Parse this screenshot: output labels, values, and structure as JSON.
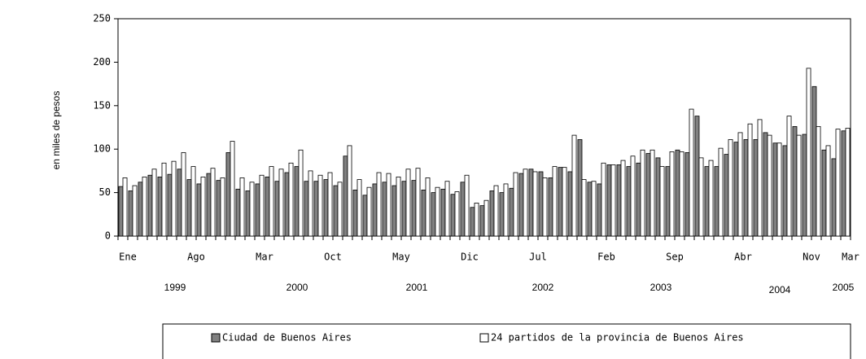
{
  "chart_data": {
    "type": "bar",
    "y_label": "en miles de pesos",
    "categories": [
      "Ene",
      null,
      null,
      null,
      null,
      null,
      null,
      "Ago",
      null,
      null,
      null,
      null,
      null,
      null,
      "Mar",
      null,
      null,
      null,
      null,
      null,
      null,
      "Oct",
      null,
      null,
      null,
      null,
      null,
      null,
      "May",
      null,
      null,
      null,
      null,
      null,
      null,
      "Dic",
      null,
      null,
      null,
      null,
      null,
      null,
      "Jul",
      null,
      null,
      null,
      null,
      null,
      null,
      "Feb",
      null,
      null,
      null,
      null,
      null,
      null,
      "Sep",
      null,
      null,
      null,
      null,
      null,
      null,
      "Abr",
      null,
      null,
      null,
      null,
      null,
      null,
      "Nov",
      null,
      null,
      null,
      "Mar"
    ],
    "years": [
      "1999",
      "2000",
      "2001",
      "2002",
      "2003",
      "2004",
      "2005"
    ],
    "series": [
      {
        "name": "Ciudad de Buenos Aires",
        "color": "#808080",
        "values": [
          57,
          52,
          62,
          70,
          68,
          71,
          77,
          65,
          60,
          72,
          64,
          96,
          54,
          52,
          60,
          68,
          63,
          73,
          80,
          63,
          63,
          65,
          58,
          92,
          53,
          47,
          60,
          62,
          58,
          63,
          64,
          53,
          50,
          54,
          48,
          62,
          33,
          35,
          52,
          50,
          55,
          72,
          77,
          74,
          67,
          79,
          74,
          111,
          62,
          60,
          82,
          82,
          80,
          84,
          95,
          90,
          80,
          99,
          96,
          138,
          80,
          80,
          94,
          108,
          111,
          111,
          119,
          107,
          104,
          126,
          117,
          172,
          99,
          89,
          121
        ]
      },
      {
        "name": "24 partidos de la provincia de Buenos Aires",
        "color": "#ffffff",
        "values": [
          67,
          58,
          68,
          77,
          84,
          86,
          96,
          80,
          68,
          78,
          67,
          109,
          67,
          62,
          70,
          80,
          77,
          84,
          99,
          75,
          70,
          73,
          62,
          104,
          65,
          56,
          73,
          72,
          68,
          77,
          78,
          67,
          56,
          63,
          51,
          70,
          38,
          41,
          58,
          60,
          73,
          77,
          74,
          67,
          80,
          79,
          116,
          65,
          63,
          84,
          82,
          87,
          92,
          99,
          99,
          80,
          97,
          97,
          146,
          90,
          87,
          101,
          111,
          119,
          129,
          134,
          116,
          107,
          138,
          116,
          193,
          126,
          104,
          123,
          124
        ]
      }
    ],
    "ylim": [
      0,
      250
    ],
    "yticks": [
      0,
      50,
      100,
      150,
      200,
      250
    ]
  }
}
